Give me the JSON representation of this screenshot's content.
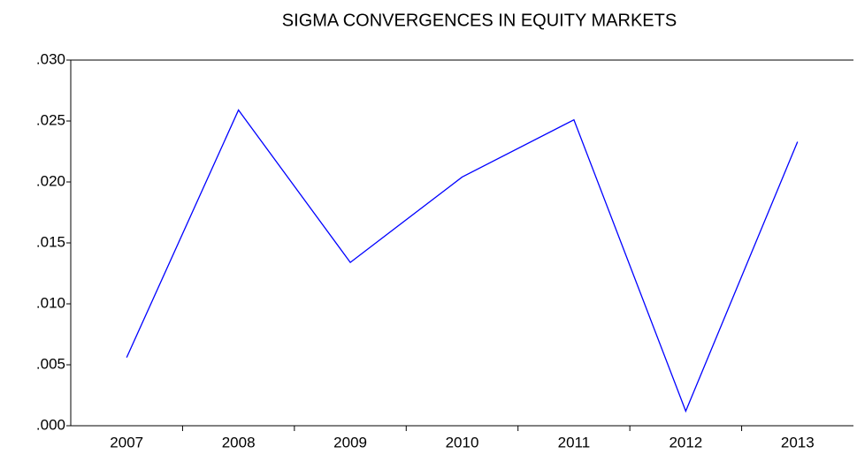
{
  "chart_data": {
    "type": "line",
    "title": "SIGMA CONVERGENCES IN EQUITY MARKETS",
    "categories": [
      "2007",
      "2008",
      "2009",
      "2010",
      "2011",
      "2012",
      "2013"
    ],
    "values": [
      0.0056,
      0.0259,
      0.0134,
      0.0204,
      0.0251,
      0.0012,
      0.0233
    ],
    "color": "#0000ff",
    "ylim": [
      0,
      0.03
    ],
    "yticks": [
      {
        "value": 0,
        "label": ".000"
      },
      {
        "value": 0.005,
        "label": ".005"
      },
      {
        "value": 0.01,
        "label": ".010"
      },
      {
        "value": 0.015,
        "label": ".015"
      },
      {
        "value": 0.02,
        "label": ".020"
      },
      {
        "value": 0.025,
        "label": ".025"
      },
      {
        "value": 0.03,
        "label": ".030"
      }
    ]
  }
}
